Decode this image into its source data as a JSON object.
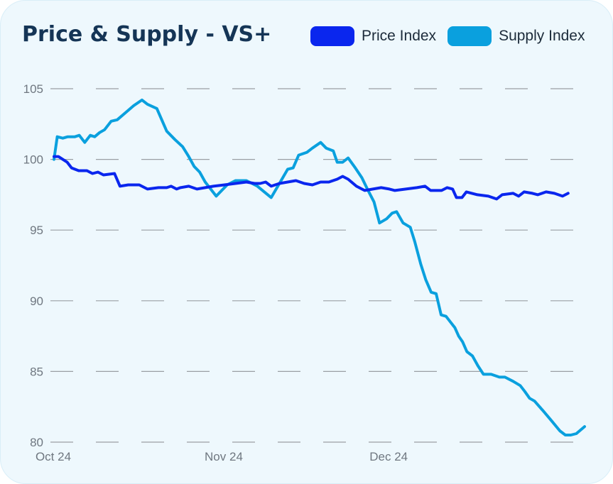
{
  "chart_data": {
    "type": "line",
    "title": "Price & Supply - VS+",
    "xlabel": "",
    "ylabel": "",
    "ylim": [
      80,
      105
    ],
    "yticks": [
      105,
      100,
      95,
      90,
      85,
      80
    ],
    "xticks": [
      {
        "label": "Oct 24",
        "day": 0
      },
      {
        "label": "Nov 24",
        "day": 31
      },
      {
        "label": "Dec 24",
        "day": 61
      }
    ],
    "grid": "horizontal-dashed",
    "legend_position": "top-right",
    "series": [
      {
        "name": "Price Index",
        "color": "#0a26ee",
        "points": [
          [
            0,
            100.2
          ],
          [
            0.8,
            100.2
          ],
          [
            1.6,
            100.0
          ],
          [
            2.4,
            99.8
          ],
          [
            3.2,
            99.4
          ],
          [
            4.5,
            99.2
          ],
          [
            6,
            99.2
          ],
          [
            7,
            99.0
          ],
          [
            8,
            99.1
          ],
          [
            9,
            98.9
          ],
          [
            11,
            99.0
          ],
          [
            12,
            98.1
          ],
          [
            13.5,
            98.2
          ],
          [
            15.5,
            98.2
          ],
          [
            17,
            97.9
          ],
          [
            19,
            98.0
          ],
          [
            20.5,
            98.0
          ],
          [
            21.3,
            98.1
          ],
          [
            22.3,
            97.9
          ],
          [
            23,
            98.0
          ],
          [
            24.5,
            98.1
          ],
          [
            26,
            97.9
          ],
          [
            27.5,
            98.0
          ],
          [
            29,
            98.1
          ],
          [
            31,
            98.2
          ],
          [
            33,
            98.3
          ],
          [
            35,
            98.4
          ],
          [
            36.5,
            98.3
          ],
          [
            37.5,
            98.3
          ],
          [
            38.5,
            98.4
          ],
          [
            39.5,
            98.1
          ],
          [
            41,
            98.3
          ],
          [
            42.5,
            98.4
          ],
          [
            44,
            98.5
          ],
          [
            45.5,
            98.3
          ],
          [
            47,
            98.2
          ],
          [
            48.5,
            98.4
          ],
          [
            50,
            98.4
          ],
          [
            51.5,
            98.6
          ],
          [
            52.5,
            98.8
          ],
          [
            53.5,
            98.6
          ],
          [
            55,
            98.1
          ],
          [
            56.5,
            97.8
          ],
          [
            58,
            97.9
          ],
          [
            59.5,
            98.0
          ],
          [
            61,
            97.9
          ],
          [
            62,
            97.8
          ],
          [
            64,
            97.9
          ],
          [
            66,
            98.0
          ],
          [
            67.5,
            98.1
          ],
          [
            68.5,
            97.8
          ],
          [
            70.5,
            97.8
          ],
          [
            71.5,
            98.0
          ],
          [
            72.5,
            97.9
          ],
          [
            73.2,
            97.3
          ],
          [
            74.2,
            97.3
          ],
          [
            75,
            97.7
          ],
          [
            77,
            97.5
          ],
          [
            79,
            97.4
          ],
          [
            80.5,
            97.2
          ],
          [
            81.5,
            97.5
          ],
          [
            83.5,
            97.6
          ],
          [
            84.5,
            97.4
          ],
          [
            85.5,
            97.7
          ],
          [
            87,
            97.6
          ],
          [
            88,
            97.5
          ],
          [
            89.5,
            97.7
          ],
          [
            91,
            97.6
          ],
          [
            92.5,
            97.4
          ],
          [
            93.5,
            97.6
          ]
        ]
      },
      {
        "name": "Supply Index",
        "color": "#0aa0de",
        "points": [
          [
            0,
            100.0
          ],
          [
            0.6,
            101.6
          ],
          [
            1.6,
            101.5
          ],
          [
            2.5,
            101.6
          ],
          [
            3.8,
            101.6
          ],
          [
            4.6,
            101.7
          ],
          [
            5.6,
            101.2
          ],
          [
            6.6,
            101.7
          ],
          [
            7.4,
            101.6
          ],
          [
            8.3,
            101.9
          ],
          [
            9.2,
            102.1
          ],
          [
            10.4,
            102.7
          ],
          [
            11.5,
            102.8
          ],
          [
            13,
            103.3
          ],
          [
            14.5,
            103.8
          ],
          [
            16,
            104.2
          ],
          [
            17,
            103.9
          ],
          [
            18.7,
            103.6
          ],
          [
            20.5,
            102.0
          ],
          [
            22,
            101.4
          ],
          [
            23.4,
            100.9
          ],
          [
            24.5,
            100.2
          ],
          [
            25.5,
            99.5
          ],
          [
            26.5,
            99.1
          ],
          [
            27.5,
            98.4
          ],
          [
            29.5,
            97.4
          ],
          [
            31.5,
            98.2
          ],
          [
            33,
            98.5
          ],
          [
            35,
            98.5
          ],
          [
            37,
            98.1
          ],
          [
            39.5,
            97.3
          ],
          [
            41,
            98.3
          ],
          [
            42.5,
            99.3
          ],
          [
            43.5,
            99.4
          ],
          [
            44.5,
            100.3
          ],
          [
            46,
            100.5
          ],
          [
            47,
            100.8
          ],
          [
            48.5,
            101.2
          ],
          [
            49.5,
            100.8
          ],
          [
            50.8,
            100.6
          ],
          [
            51.5,
            99.8
          ],
          [
            52.5,
            99.8
          ],
          [
            53.5,
            100.1
          ],
          [
            54.8,
            99.4
          ],
          [
            56,
            98.7
          ],
          [
            57,
            97.9
          ],
          [
            58.2,
            97.0
          ],
          [
            59.2,
            95.5
          ],
          [
            60.5,
            95.8
          ],
          [
            61.5,
            96.2
          ],
          [
            62.3,
            96.3
          ],
          [
            63.5,
            95.5
          ],
          [
            64.8,
            95.2
          ],
          [
            65.6,
            94.2
          ],
          [
            66.7,
            92.6
          ],
          [
            67.6,
            91.5
          ],
          [
            68.6,
            90.6
          ],
          [
            69.5,
            90.5
          ],
          [
            70.4,
            89.0
          ],
          [
            71.3,
            88.9
          ],
          [
            72.1,
            88.5
          ],
          [
            72.9,
            88.1
          ],
          [
            73.6,
            87.5
          ],
          [
            74.3,
            87.1
          ],
          [
            75.1,
            86.4
          ],
          [
            76.1,
            86.1
          ],
          [
            77.1,
            85.4
          ],
          [
            78.1,
            84.8
          ],
          [
            79.5,
            84.8
          ],
          [
            81,
            84.6
          ],
          [
            82,
            84.6
          ],
          [
            83.5,
            84.3
          ],
          [
            84.8,
            84.0
          ],
          [
            85.6,
            83.6
          ],
          [
            86.5,
            83.1
          ],
          [
            87.4,
            82.9
          ],
          [
            89,
            82.2
          ],
          [
            90.5,
            81.5
          ],
          [
            92,
            80.8
          ],
          [
            93,
            80.5
          ],
          [
            94,
            80.5
          ],
          [
            95,
            80.6
          ],
          [
            96.5,
            81.1
          ]
        ]
      }
    ]
  }
}
